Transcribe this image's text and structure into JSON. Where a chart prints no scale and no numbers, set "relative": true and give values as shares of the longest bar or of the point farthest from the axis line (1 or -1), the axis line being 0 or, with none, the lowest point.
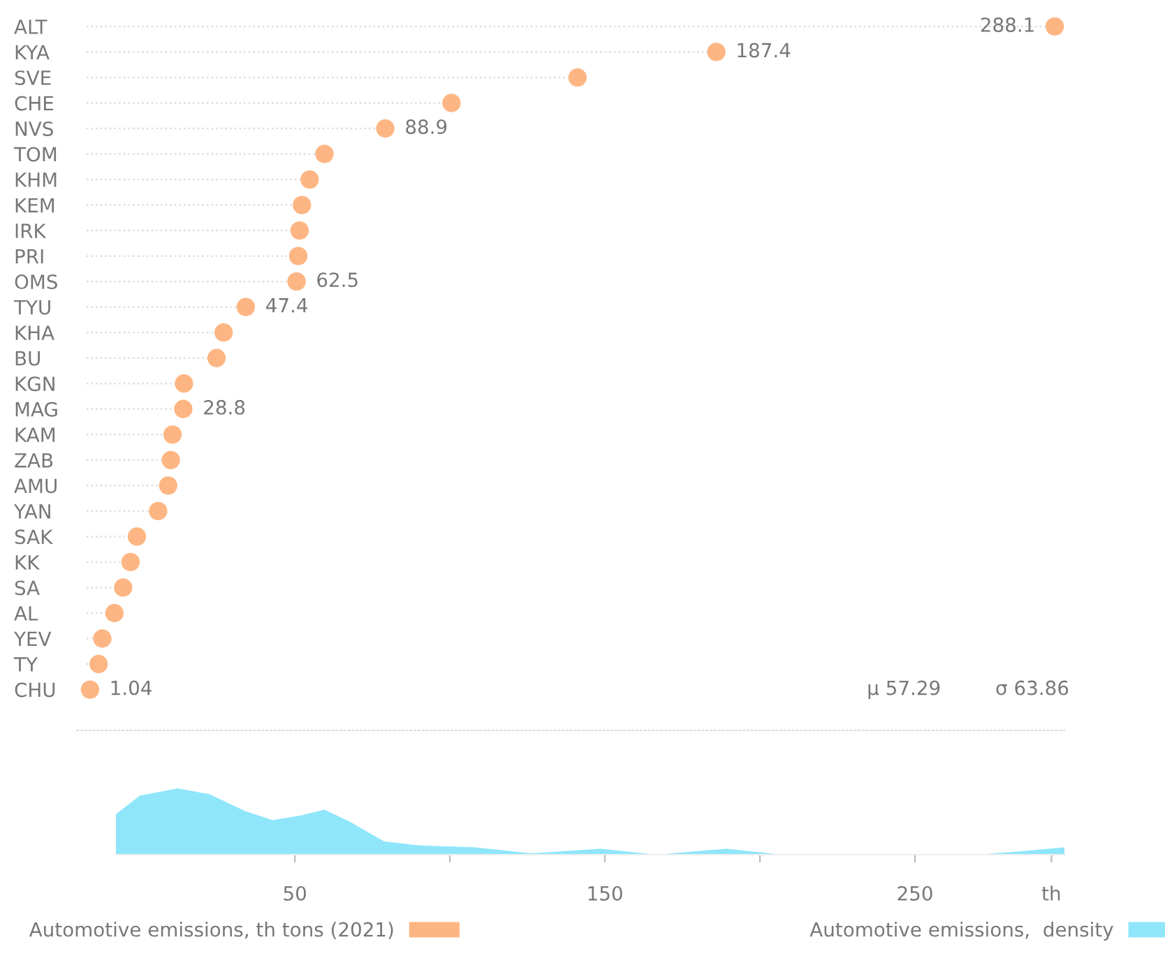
{
  "chart_data": [
    {
      "type": "lollipop",
      "orientation": "horizontal",
      "marker": "circle",
      "line_style": "dotted",
      "legend": "bottom",
      "tick_labels": "y",
      "categories": [
        "ALT",
        "KYA",
        "SVE",
        "CHE",
        "NVS",
        "TOM",
        "KHM",
        "KEM",
        "IRK",
        "PRI",
        "OMS",
        "TYU",
        "KHA",
        "BU",
        "KGN",
        "MAG",
        "KAM",
        "ZAB",
        "AMU",
        "YAN",
        "SAK",
        "KK",
        "SA",
        "AL",
        "YEV",
        "TY",
        "CHU"
      ],
      "series": [
        {
          "name": "Automotive emissions, th tons (2021)",
          "color": "#fdb683",
          "values": [
            288.1,
            187.4,
            146.1,
            108.6,
            88.9,
            70.8,
            66.4,
            64.1,
            63.4,
            63.0,
            62.5,
            47.4,
            40.8,
            38.7,
            29.0,
            28.8,
            25.6,
            25.1,
            24.3,
            21.3,
            15.0,
            13.1,
            10.9,
            8.3,
            4.7,
            3.6,
            1.04
          ],
          "value_labels": [
            "288.1",
            "187.4",
            null,
            null,
            "88.9",
            null,
            null,
            null,
            null,
            null,
            "62.5",
            "47.4",
            null,
            null,
            null,
            "28.8",
            null,
            null,
            null,
            null,
            null,
            null,
            null,
            null,
            null,
            null,
            "1.04"
          ]
        }
      ],
      "annotations": [
        "μ 57.29",
        "σ 63.86"
      ]
    },
    {
      "type": "area",
      "relative": true,
      "legend": "bottom",
      "tick_labels": "x",
      "xlim": [
        -7.7,
        298.2
      ],
      "xticks": [
        50,
        {
          "value": 100,
          "label": null
        },
        150,
        {
          "value": 200,
          "label": null
        },
        250,
        {
          "value": 294,
          "label": "th"
        }
      ],
      "series": [
        {
          "name": "Automotive emissions,  density",
          "color": "#8fe6fb",
          "x": [
            -7.7,
            0,
            12.2,
            22.5,
            33.8,
            42.8,
            51.8,
            59.5,
            67.6,
            78.8,
            90.1,
            108.1,
            126.1,
            148.6,
            166.7,
            189.2,
            207.2,
            216.2,
            270.3,
            283.8,
            298.2
          ],
          "values": [
            0.61,
            0.89,
            1,
            0.91,
            0.66,
            0.52,
            0.59,
            0.68,
            0.5,
            0.2,
            0.14,
            0.11,
            0.02,
            0.09,
            0,
            0.09,
            0,
            0,
            0,
            0.05,
            0.11
          ]
        }
      ]
    }
  ]
}
